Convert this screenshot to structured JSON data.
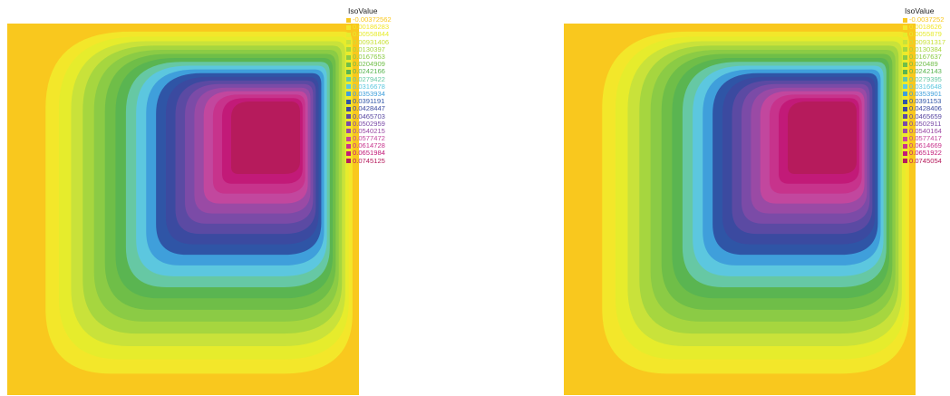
{
  "colors": [
    "#f9c81e",
    "#f3e72a",
    "#e6ec2c",
    "#c9e23a",
    "#a6d63f",
    "#8bcb45",
    "#6fbe48",
    "#5ab551",
    "#66c8a4",
    "#5cc7df",
    "#3f9fdb",
    "#2f55a6",
    "#3b4aa0",
    "#5b4aa3",
    "#7b4ba7",
    "#9a4aa5",
    "#c2479e",
    "#c7338c",
    "#c21a78",
    "#b61b5c"
  ],
  "left": {
    "legend": {
      "title": "IsoValue",
      "values": [
        "-0.00372562",
        "0.00186283",
        "0.00558844",
        "0.00931406",
        "0.0130397",
        "0.0167653",
        "0.0204909",
        "0.0242166",
        "0.0279422",
        "0.0316678",
        "0.0353934",
        "0.0391191",
        "0.0428447",
        "0.0465703",
        "0.0502959",
        "0.0540215",
        "0.0577472",
        "0.0614728",
        "0.0651984",
        "0.0745125"
      ]
    }
  },
  "right": {
    "legend": {
      "title": "IsoValue",
      "values": [
        "-0.0037252",
        "0.0018626",
        "0.0055879",
        "0.00931317",
        "0.0130384",
        "0.0167637",
        "0.020489",
        "0.0242143",
        "0.0279395",
        "0.0316648",
        "0.0353901",
        "0.0391153",
        "0.0428406",
        "0.0465659",
        "0.0502911",
        "0.0540164",
        "0.0577417",
        "0.0614669",
        "0.0651922",
        "0.0745054"
      ]
    }
  }
}
